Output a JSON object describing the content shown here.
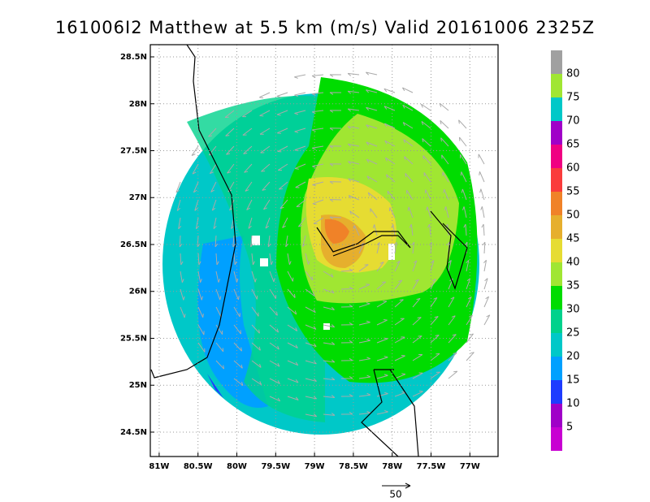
{
  "title": "161006I2 Matthew at 5.5 km (m/s) Valid 20161006 2325Z",
  "map": {
    "xlim": [
      -81.114,
      -76.637
    ],
    "ylim": [
      24.24,
      28.63
    ],
    "xticks": [
      {
        "value": -81,
        "label": "81W"
      },
      {
        "value": -80.5,
        "label": "80.5W"
      },
      {
        "value": -80,
        "label": "80W"
      },
      {
        "value": -79.5,
        "label": "79.5W"
      },
      {
        "value": -79,
        "label": "79W"
      },
      {
        "value": -78.5,
        "label": "78.5W"
      },
      {
        "value": -78,
        "label": "78W"
      },
      {
        "value": -77.5,
        "label": "77.5W"
      },
      {
        "value": -77,
        "label": "77W"
      }
    ],
    "yticks": [
      {
        "value": 24.5,
        "label": "24.5N"
      },
      {
        "value": 25,
        "label": "25N"
      },
      {
        "value": 25.5,
        "label": "25.5N"
      },
      {
        "value": 26,
        "label": "26N"
      },
      {
        "value": 26.5,
        "label": "26.5N"
      },
      {
        "value": 27,
        "label": "27N"
      },
      {
        "value": 27.5,
        "label": "27.5N"
      },
      {
        "value": 28,
        "label": "28N"
      },
      {
        "value": 28.5,
        "label": "28.5N"
      }
    ],
    "grid": true
  },
  "colorbar": {
    "ticks": [
      5,
      10,
      15,
      20,
      25,
      30,
      35,
      40,
      45,
      50,
      55,
      60,
      65,
      70,
      75,
      80
    ],
    "colors": [
      "#c800d2",
      "#a000c8",
      "#1e3cff",
      "#00a0ff",
      "#00c8c8",
      "#00d28c",
      "#00dc00",
      "#a0e632",
      "#e6dc32",
      "#e6af2d",
      "#f08228",
      "#fa3c3c",
      "#f00082",
      "#a000c8",
      "#00c8c8",
      "#a0e632",
      "#a0a0a0"
    ]
  },
  "reference_vector": {
    "label": "50"
  }
}
